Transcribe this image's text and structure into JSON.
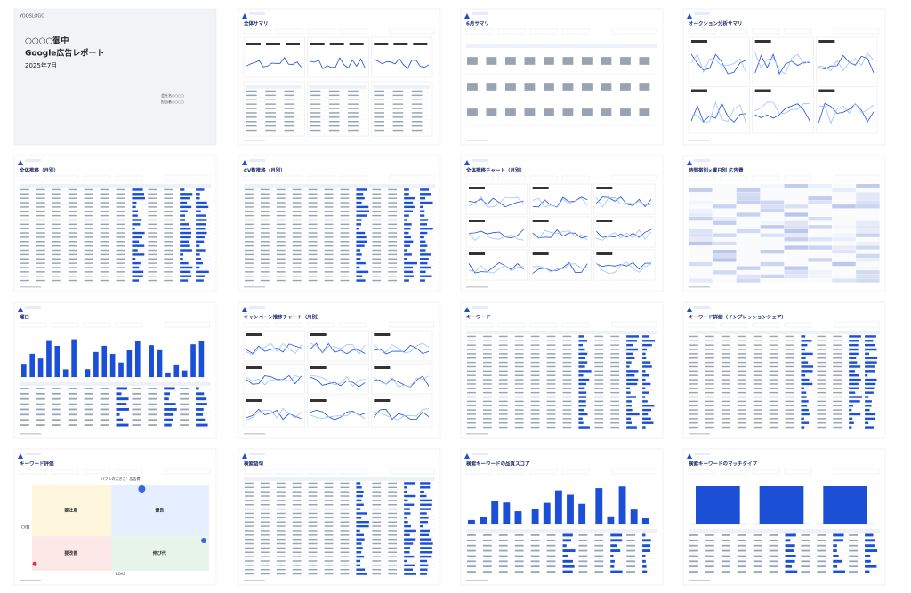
{
  "cover": {
    "logo": "YOOSLOGO",
    "addressee": "○○○○御中",
    "title": "Google広告レポート",
    "date": "2025年7月",
    "company": "会社名○○○○",
    "person": "担当者○○○○"
  },
  "pages": [
    {
      "title": "全体サマリ"
    },
    {
      "title": "6月サマリ"
    },
    {
      "title": "オークション分析サマリ"
    },
    {
      "title": "全体推移（月別）"
    },
    {
      "title": "CV数推移（月別）"
    },
    {
      "title": "全体推移チャート（月別）"
    },
    {
      "title": "時間帯別×曜日別 広告費"
    },
    {
      "title": "曜日"
    },
    {
      "title": "キャンペーン推移チャート（月別）"
    },
    {
      "title": "キーワード"
    },
    {
      "title": "キーワード詳細（インプレッションシェア）"
    },
    {
      "title": "キーワード評価"
    },
    {
      "title": "検索語句"
    },
    {
      "title": "検索キーワードの品質スコア"
    },
    {
      "title": "検索キーワードのマッチタイプ"
    }
  ],
  "keyword_evaluation": {
    "chart_title": "バブルの大きさ：広告費",
    "y_label": "CV数",
    "x_label": "ROAS",
    "quadrants": [
      "要注意",
      "優良",
      "要改善",
      "伸び代"
    ]
  }
}
